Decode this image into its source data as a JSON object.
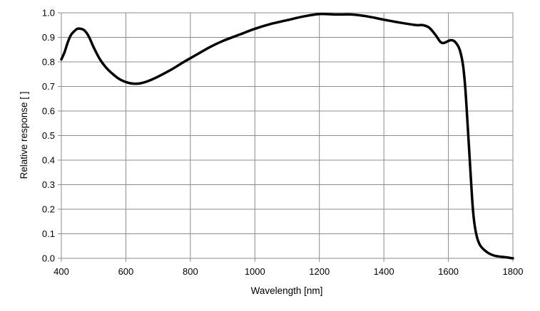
{
  "chart_data": {
    "type": "line",
    "title": "",
    "xlabel": "Wavelength [nm]",
    "ylabel": "Relative response [ ]",
    "xlim": [
      400,
      1800
    ],
    "ylim": [
      0.0,
      1.0
    ],
    "grid": true,
    "x_ticks": [
      {
        "value": 400,
        "label": "400"
      },
      {
        "value": 600,
        "label": "600"
      },
      {
        "value": 800,
        "label": "800"
      },
      {
        "value": 1000,
        "label": "1000"
      },
      {
        "value": 1200,
        "label": "1200"
      },
      {
        "value": 1400,
        "label": "1400"
      },
      {
        "value": 1600,
        "label": "1600"
      },
      {
        "value": 1800,
        "label": "1800"
      }
    ],
    "y_ticks": [
      {
        "value": 0.0,
        "label": "0.0"
      },
      {
        "value": 0.1,
        "label": "0.1"
      },
      {
        "value": 0.2,
        "label": "0.2"
      },
      {
        "value": 0.3,
        "label": "0.3"
      },
      {
        "value": 0.4,
        "label": "0.4"
      },
      {
        "value": 0.5,
        "label": "0.5"
      },
      {
        "value": 0.6,
        "label": "0.6"
      },
      {
        "value": 0.7,
        "label": "0.7"
      },
      {
        "value": 0.8,
        "label": "0.8"
      },
      {
        "value": 0.9,
        "label": "0.9"
      },
      {
        "value": 1.0,
        "label": "1.0"
      }
    ],
    "series": [
      {
        "color": "#000000",
        "points": [
          [
            400,
            0.81
          ],
          [
            410,
            0.84
          ],
          [
            420,
            0.88
          ],
          [
            430,
            0.91
          ],
          [
            440,
            0.925
          ],
          [
            450,
            0.935
          ],
          [
            460,
            0.935
          ],
          [
            470,
            0.93
          ],
          [
            480,
            0.915
          ],
          [
            490,
            0.89
          ],
          [
            500,
            0.86
          ],
          [
            520,
            0.81
          ],
          [
            540,
            0.775
          ],
          [
            560,
            0.75
          ],
          [
            580,
            0.73
          ],
          [
            600,
            0.718
          ],
          [
            620,
            0.712
          ],
          [
            640,
            0.712
          ],
          [
            660,
            0.718
          ],
          [
            680,
            0.728
          ],
          [
            700,
            0.74
          ],
          [
            740,
            0.768
          ],
          [
            780,
            0.8
          ],
          [
            820,
            0.83
          ],
          [
            860,
            0.86
          ],
          [
            900,
            0.885
          ],
          [
            950,
            0.91
          ],
          [
            1000,
            0.935
          ],
          [
            1050,
            0.955
          ],
          [
            1100,
            0.97
          ],
          [
            1150,
            0.985
          ],
          [
            1200,
            0.995
          ],
          [
            1250,
            0.993
          ],
          [
            1300,
            0.993
          ],
          [
            1350,
            0.985
          ],
          [
            1400,
            0.972
          ],
          [
            1450,
            0.96
          ],
          [
            1500,
            0.95
          ],
          [
            1520,
            0.95
          ],
          [
            1540,
            0.94
          ],
          [
            1560,
            0.91
          ],
          [
            1575,
            0.882
          ],
          [
            1585,
            0.877
          ],
          [
            1595,
            0.882
          ],
          [
            1605,
            0.888
          ],
          [
            1615,
            0.887
          ],
          [
            1625,
            0.875
          ],
          [
            1635,
            0.85
          ],
          [
            1645,
            0.79
          ],
          [
            1652,
            0.7
          ],
          [
            1658,
            0.58
          ],
          [
            1664,
            0.45
          ],
          [
            1670,
            0.32
          ],
          [
            1676,
            0.2
          ],
          [
            1682,
            0.13
          ],
          [
            1690,
            0.08
          ],
          [
            1700,
            0.05
          ],
          [
            1720,
            0.025
          ],
          [
            1740,
            0.012
          ],
          [
            1760,
            0.007
          ],
          [
            1780,
            0.004
          ],
          [
            1800,
            0.0
          ]
        ]
      }
    ]
  },
  "colors": {
    "grid": "#8c8c8c",
    "axis": "#8c8c8c",
    "line": "#000000"
  }
}
